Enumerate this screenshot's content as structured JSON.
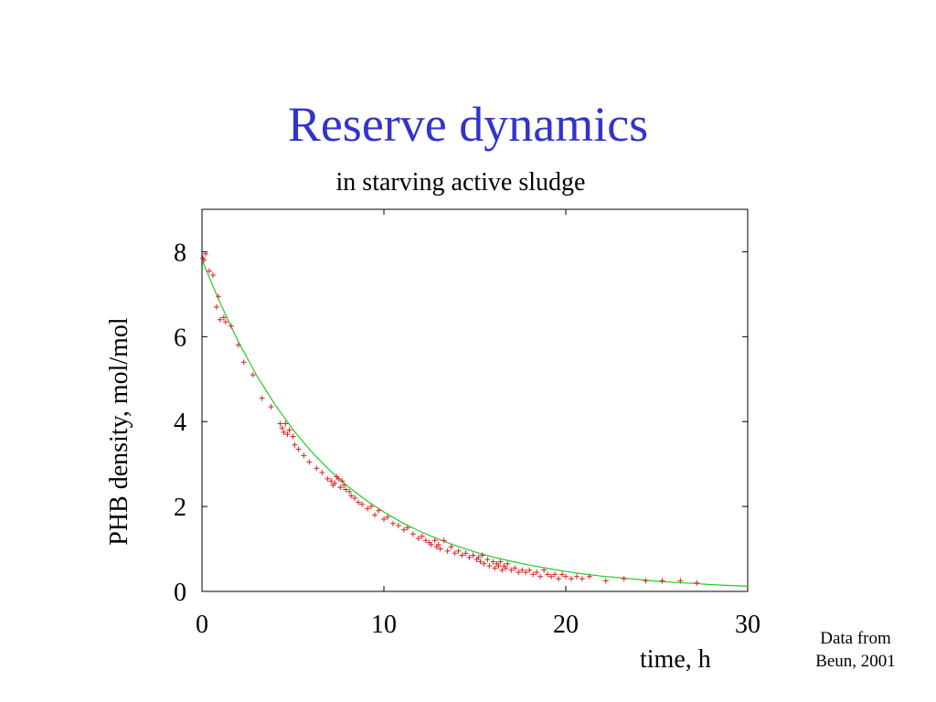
{
  "slide": {
    "title": "Reserve dynamics",
    "subtitle": "in starving active sludge",
    "source_note_line1": "Data from",
    "source_note_line2": "Beun, 2001"
  },
  "colors": {
    "title": "#3333cc",
    "axes": "#000000",
    "data_points": "#dd2222",
    "fit_curve": "#22cc22"
  },
  "chart_data": {
    "type": "scatter",
    "title": "",
    "xlabel": "time, h",
    "ylabel": "PHB density, mol/mol",
    "xlim": [
      0,
      30
    ],
    "ylim": [
      0,
      9
    ],
    "xticks": [
      0,
      10,
      20,
      30
    ],
    "yticks": [
      0,
      2,
      4,
      6,
      8
    ],
    "grid": false,
    "legend": "none",
    "series": [
      {
        "marker": "plus",
        "color": "#dd2222",
        "x": [
          0.05,
          0.1,
          0.2,
          0.4,
          0.6,
          0.8,
          0.9,
          1.0,
          1.2,
          1.3,
          1.6,
          2.0,
          2.3,
          2.8,
          3.3,
          3.8,
          4.3,
          4.4,
          4.5,
          4.6,
          4.7,
          4.8,
          5.0,
          5.1,
          5.3,
          5.6,
          5.9,
          6.3,
          6.6,
          6.9,
          7.1,
          7.2,
          7.3,
          7.4,
          7.5,
          7.6,
          7.7,
          7.8,
          7.9,
          8.1,
          8.2,
          8.4,
          8.6,
          8.8,
          9.1,
          9.3,
          9.5,
          9.7,
          10.0,
          10.2,
          10.5,
          10.8,
          11.1,
          11.3,
          11.6,
          11.9,
          12.1,
          12.3,
          12.5,
          12.6,
          12.8,
          12.9,
          13.0,
          13.1,
          13.3,
          13.5,
          13.7,
          13.9,
          14.1,
          14.3,
          14.5,
          14.7,
          14.9,
          15.1,
          15.2,
          15.3,
          15.4,
          15.5,
          15.7,
          15.8,
          16.0,
          16.1,
          16.2,
          16.3,
          16.4,
          16.5,
          16.6,
          16.7,
          16.8,
          17.0,
          17.2,
          17.4,
          17.6,
          17.8,
          18.0,
          18.2,
          18.4,
          18.6,
          18.8,
          19.0,
          19.2,
          19.4,
          19.6,
          19.8,
          20.0,
          20.3,
          20.6,
          20.9,
          21.3,
          22.2,
          23.2,
          24.4,
          25.3,
          26.3,
          27.2
        ],
        "y": [
          7.85,
          7.8,
          7.95,
          7.55,
          7.45,
          6.7,
          6.95,
          6.4,
          6.45,
          6.35,
          6.25,
          5.8,
          5.4,
          5.1,
          4.55,
          4.35,
          3.95,
          3.85,
          3.75,
          3.95,
          3.7,
          3.8,
          3.65,
          3.45,
          3.35,
          3.2,
          3.05,
          2.9,
          2.8,
          2.65,
          2.6,
          2.5,
          2.55,
          2.7,
          2.65,
          2.45,
          2.6,
          2.5,
          2.4,
          2.35,
          2.25,
          2.2,
          2.1,
          2.05,
          1.95,
          2.0,
          1.8,
          1.9,
          1.7,
          1.75,
          1.6,
          1.55,
          1.45,
          1.5,
          1.35,
          1.25,
          1.3,
          1.2,
          1.15,
          1.1,
          1.2,
          1.05,
          1.1,
          1.0,
          1.2,
          0.95,
          1.05,
          0.9,
          0.95,
          0.85,
          0.9,
          0.8,
          0.85,
          0.75,
          0.8,
          0.7,
          0.85,
          0.65,
          0.75,
          0.6,
          0.7,
          0.55,
          0.65,
          0.6,
          0.7,
          0.5,
          0.6,
          0.55,
          0.65,
          0.5,
          0.55,
          0.45,
          0.5,
          0.45,
          0.5,
          0.4,
          0.45,
          0.35,
          0.5,
          0.4,
          0.35,
          0.4,
          0.3,
          0.4,
          0.35,
          0.3,
          0.35,
          0.3,
          0.35,
          0.25,
          0.3,
          0.25,
          0.25,
          0.25,
          0.2
        ]
      },
      {
        "style": "line",
        "color": "#22cc22",
        "x": [
          0,
          1,
          2,
          3,
          4,
          5,
          6,
          7,
          8,
          9,
          10,
          11,
          12,
          13,
          14,
          15,
          16,
          17,
          18,
          19,
          20,
          21,
          22,
          23,
          24,
          25,
          26,
          27,
          28,
          29,
          30
        ],
        "y": [
          7.8,
          6.79,
          5.88,
          5.09,
          4.41,
          3.81,
          3.3,
          2.86,
          2.48,
          2.15,
          1.87,
          1.62,
          1.41,
          1.23,
          1.07,
          0.93,
          0.81,
          0.71,
          0.62,
          0.54,
          0.47,
          0.41,
          0.36,
          0.32,
          0.28,
          0.24,
          0.21,
          0.19,
          0.16,
          0.14,
          0.12
        ]
      }
    ]
  }
}
